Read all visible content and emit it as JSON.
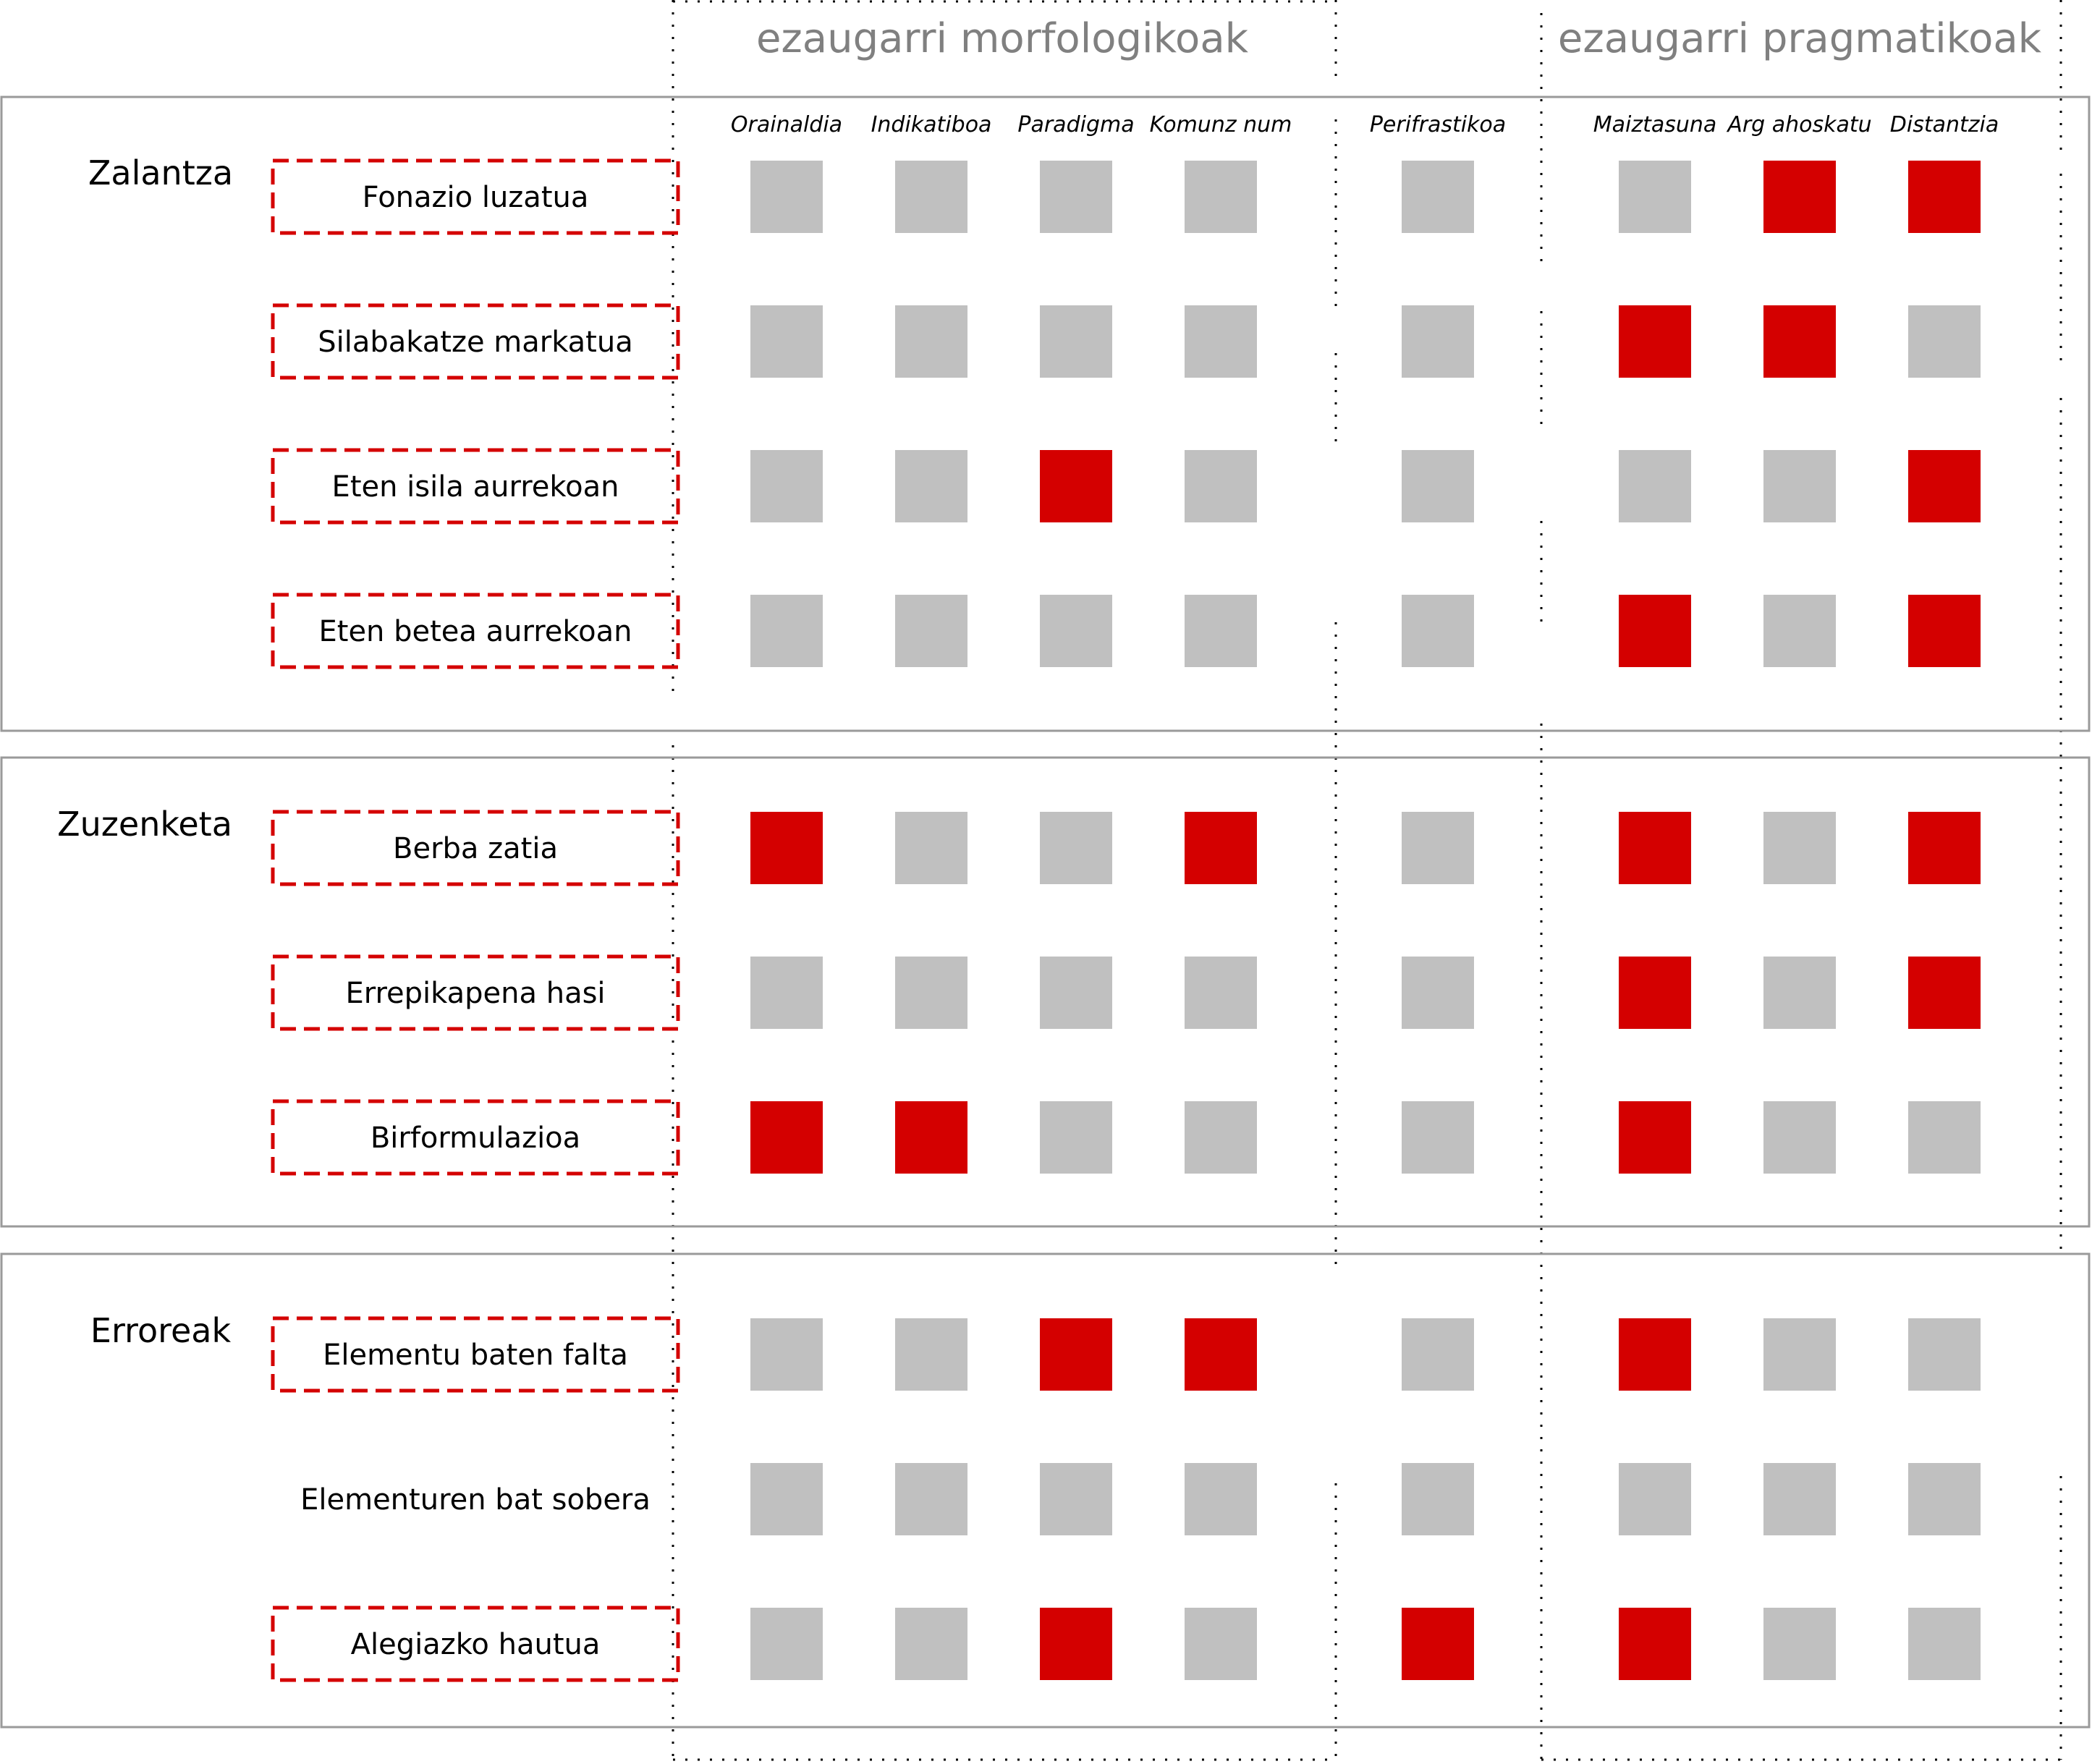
{
  "colors": {
    "on": "#d40000",
    "off": "#c0c0c0",
    "box": "#9a9a9a"
  },
  "groups": [
    {
      "title": "ezaugarri morfologikoak"
    },
    {
      "title": "ezaugarri pragmatikoak"
    }
  ],
  "columns": [
    "Orainaldia",
    "Indikatiboa",
    "Paradigma",
    "Komunz num",
    "Perifrastikoa",
    "Maiztasuna",
    "Arg ahoskatu",
    "Distantzia"
  ],
  "sections": [
    {
      "label": "Zalantza",
      "rows": [
        {
          "label": "Fonazio luzatua",
          "boxed": true,
          "cells": [
            0,
            0,
            0,
            0,
            0,
            0,
            1,
            1
          ]
        },
        {
          "label": "Silabakatze markatua",
          "boxed": true,
          "cells": [
            0,
            0,
            0,
            0,
            0,
            1,
            1,
            0
          ]
        },
        {
          "label": "Eten isila aurrekoan",
          "boxed": true,
          "cells": [
            0,
            0,
            1,
            0,
            0,
            0,
            0,
            1
          ]
        },
        {
          "label": "Eten betea aurrekoan",
          "boxed": true,
          "cells": [
            0,
            0,
            0,
            0,
            0,
            1,
            0,
            1
          ]
        }
      ]
    },
    {
      "label": "Zuzenketa",
      "rows": [
        {
          "label": "Berba zatia",
          "boxed": true,
          "cells": [
            1,
            0,
            0,
            1,
            0,
            1,
            0,
            1
          ]
        },
        {
          "label": "Errepikapena hasi",
          "boxed": true,
          "cells": [
            0,
            0,
            0,
            0,
            0,
            1,
            0,
            1
          ]
        },
        {
          "label": "Birformulazioa",
          "boxed": true,
          "cells": [
            1,
            1,
            0,
            0,
            0,
            1,
            0,
            0
          ]
        }
      ]
    },
    {
      "label": "Erroreak",
      "rows": [
        {
          "label": "Elementu baten falta",
          "boxed": true,
          "cells": [
            0,
            0,
            1,
            1,
            0,
            1,
            0,
            0
          ]
        },
        {
          "label": "Elementuren bat sobera",
          "boxed": false,
          "cells": [
            0,
            0,
            0,
            0,
            0,
            0,
            0,
            0
          ]
        },
        {
          "label": "Alegiazko hautua",
          "boxed": true,
          "cells": [
            0,
            0,
            1,
            0,
            1,
            1,
            0,
            0
          ]
        }
      ]
    }
  ]
}
